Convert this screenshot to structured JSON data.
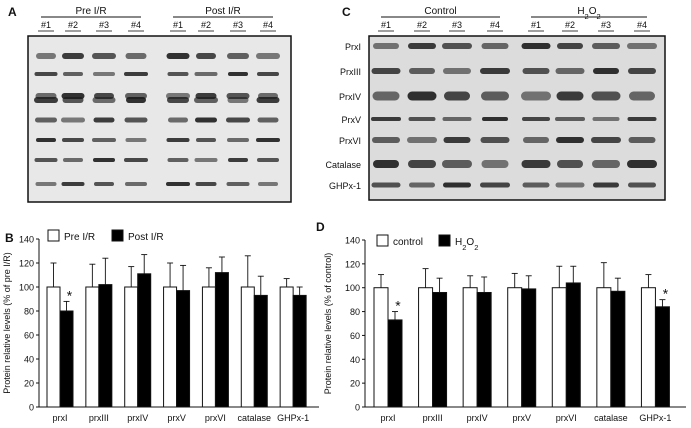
{
  "panels": {
    "A": {
      "letter": "A",
      "groups": [
        {
          "label": "Pre I/R"
        },
        {
          "label": "Post I/R"
        }
      ],
      "lane_labels": [
        "#1",
        "#2",
        "#3",
        "#4",
        "#1",
        "#2",
        "#3",
        "#4"
      ]
    },
    "C": {
      "letter": "C",
      "groups": [
        {
          "label": "Control"
        },
        {
          "label": "H2O2"
        }
      ],
      "lane_labels": [
        "#1",
        "#2",
        "#3",
        "#4",
        "#1",
        "#2",
        "#3",
        "#4"
      ],
      "row_labels": [
        "PrxI",
        "PrxIII",
        "PrxIV",
        "PrxV",
        "PrxVI",
        "Catalase",
        "GHPx-1"
      ]
    }
  },
  "chart_data": [
    {
      "panel": "B",
      "type": "bar",
      "ylabel": "Protein relative levels (% of pre I/R)",
      "ylim": [
        0,
        140
      ],
      "yticks": [
        0,
        20,
        40,
        60,
        80,
        100,
        120,
        140
      ],
      "categories": [
        "prxI",
        "prxIII",
        "prxIV",
        "prxV",
        "prxVI",
        "catalase",
        "GHPx-1"
      ],
      "legend_position": "top-left",
      "series": [
        {
          "name": "Pre I/R",
          "color": "#ffffff",
          "values": [
            100,
            100,
            100,
            100,
            100,
            100,
            100
          ],
          "errors": [
            20,
            19,
            17,
            20,
            16,
            26,
            7
          ]
        },
        {
          "name": "Post I/R",
          "color": "#000000",
          "values": [
            80,
            102,
            111,
            97,
            112,
            93,
            93
          ],
          "errors": [
            8,
            22,
            16,
            21,
            13,
            16,
            7
          ]
        }
      ],
      "annotations": [
        {
          "category": "prxI",
          "series": 1,
          "text": "*"
        }
      ]
    },
    {
      "panel": "D",
      "type": "bar",
      "ylabel": "Protein relative levels (% of control)",
      "ylim": [
        0,
        140
      ],
      "yticks": [
        0,
        20,
        40,
        60,
        80,
        100,
        120,
        140
      ],
      "categories": [
        "prxI",
        "prxIII",
        "prxIV",
        "prxV",
        "prxVI",
        "catalase",
        "GHPx-1"
      ],
      "legend_position": "top-left",
      "series": [
        {
          "name": "control",
          "color": "#ffffff",
          "values": [
            100,
            100,
            100,
            100,
            100,
            100,
            100
          ],
          "errors": [
            11,
            16,
            10,
            12,
            18,
            21,
            11
          ]
        },
        {
          "name": "H2O2",
          "color": "#000000",
          "values": [
            73,
            96,
            96,
            99,
            104,
            97,
            84
          ],
          "errors": [
            7,
            12,
            13,
            11,
            14,
            11,
            6
          ]
        }
      ],
      "annotations": [
        {
          "category": "prxI",
          "series": 1,
          "text": "*"
        },
        {
          "category": "GHPx-1",
          "series": 1,
          "text": "*"
        }
      ]
    }
  ]
}
